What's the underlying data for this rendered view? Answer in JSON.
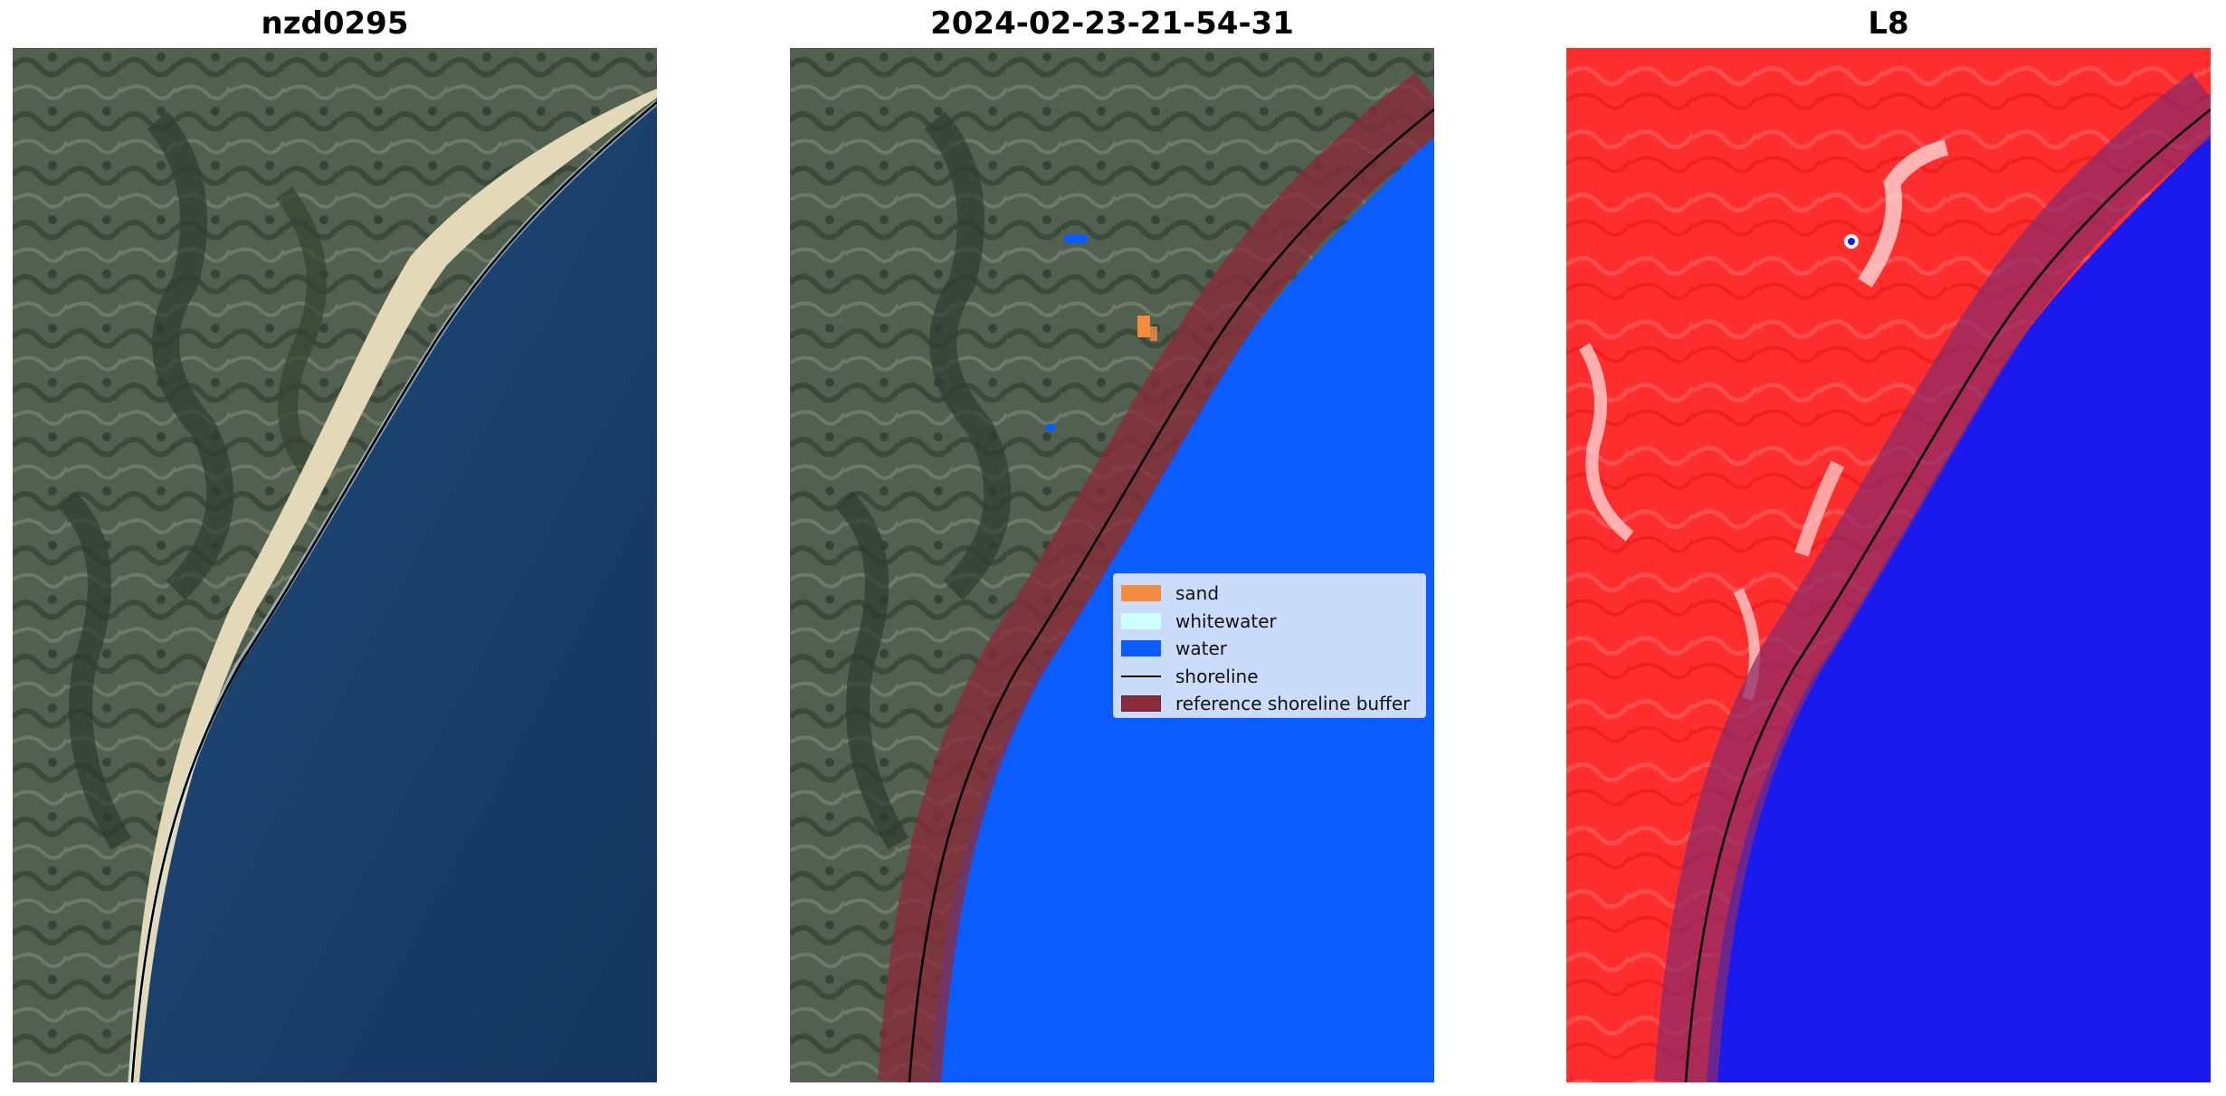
{
  "panels": [
    {
      "title": "nzd0295"
    },
    {
      "title": "2024-02-23-21-54-31"
    },
    {
      "title": "L8"
    }
  ],
  "legend": {
    "items": [
      {
        "label": "sand",
        "kind": "patch",
        "color": "#f58c3d"
      },
      {
        "label": "whitewater",
        "kind": "patch",
        "color": "#ccffff"
      },
      {
        "label": "water",
        "kind": "patch",
        "color": "#0a5cff"
      },
      {
        "label": "shoreline",
        "kind": "line",
        "color": "#000000"
      },
      {
        "label": "reference shoreline buffer",
        "kind": "patch",
        "color": "#8b2a3a"
      }
    ]
  },
  "colors": {
    "land": "#4a5a4a",
    "ocean": "#1a3a66",
    "sand_beach": "#e8dfc4",
    "classified_water": "#0a5cff",
    "index_land": "#ff2a2a",
    "index_water": "#1a1aee",
    "buffer": "#8b2a3a"
  }
}
